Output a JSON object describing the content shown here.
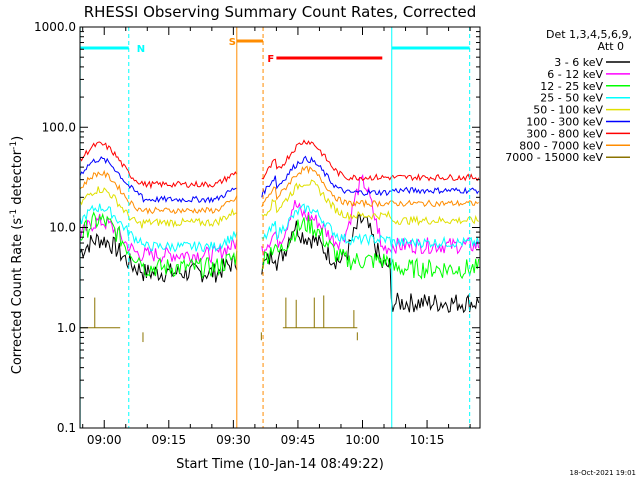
{
  "chart_data": {
    "type": "line",
    "title": "RHESSI Observing Summary Count Rates, Corrected",
    "xlabel": "Start Time (10-Jan-14 08:49:22)",
    "ylabel": "Corrected Count Rate (s⁻¹ detector⁻¹)",
    "ylabel_main": "Corrected Count Rate (s",
    "ylabel_sup1": "-1",
    "ylabel_mid": " detector",
    "ylabel_sup2": "-1",
    "ylabel_end": ")",
    "y_scale": "log",
    "xlim_minutes": [
      -5.63,
      87.3
    ],
    "ylim": [
      0.1,
      1000
    ],
    "x_ticks": [
      {
        "minute": 0,
        "label": "09:00"
      },
      {
        "minute": 15,
        "label": "09:15"
      },
      {
        "minute": 30,
        "label": "09:30"
      },
      {
        "minute": 45,
        "label": "09:45"
      },
      {
        "minute": 60,
        "label": "10:00"
      },
      {
        "minute": 75,
        "label": "10:15"
      }
    ],
    "y_ticks": [
      {
        "value": 0.1,
        "label": "0.1"
      },
      {
        "value": 1,
        "label": "1.0"
      },
      {
        "value": 10,
        "label": "10.0"
      },
      {
        "value": 100,
        "label": "100.0"
      },
      {
        "value": 1000,
        "label": "1000.0"
      }
    ],
    "legend": {
      "position": "right",
      "header": "Det 1,3,4,5,6,9,",
      "attenuator": "Att 0"
    },
    "series": [
      {
        "name": "3 - 6 keV",
        "color": "#000000"
      },
      {
        "name": "6 - 12 keV",
        "color": "#ff00ff"
      },
      {
        "name": "12 - 25 keV",
        "color": "#00ff00"
      },
      {
        "name": "25 - 50 keV",
        "color": "#00ffff"
      },
      {
        "name": "50 - 100 keV",
        "color": "#e0e000"
      },
      {
        "name": "100 - 300 keV",
        "color": "#0000ff"
      },
      {
        "name": "300 - 800 keV",
        "color": "#ff0000"
      },
      {
        "name": "800 - 7000 keV",
        "color": "#ff8c00"
      },
      {
        "name": "7000 - 15000 keV",
        "color": "#8b7300"
      }
    ],
    "flags": [
      {
        "label": "N",
        "color": "#00ffff",
        "start_minute": -5.6,
        "end_minute": 5.7
      },
      {
        "label": "N",
        "color": "#00ffff",
        "start_minute": 66.8,
        "end_minute": 84.9
      },
      {
        "label": "S",
        "color": "#ff8c00",
        "start_minute": 30.8,
        "end_minute": 36.9
      },
      {
        "label": "F",
        "color": "#ff0000",
        "start_minute": 40.0,
        "end_minute": 64.6
      }
    ],
    "annotation": "18-Oct-2021 19:01"
  }
}
